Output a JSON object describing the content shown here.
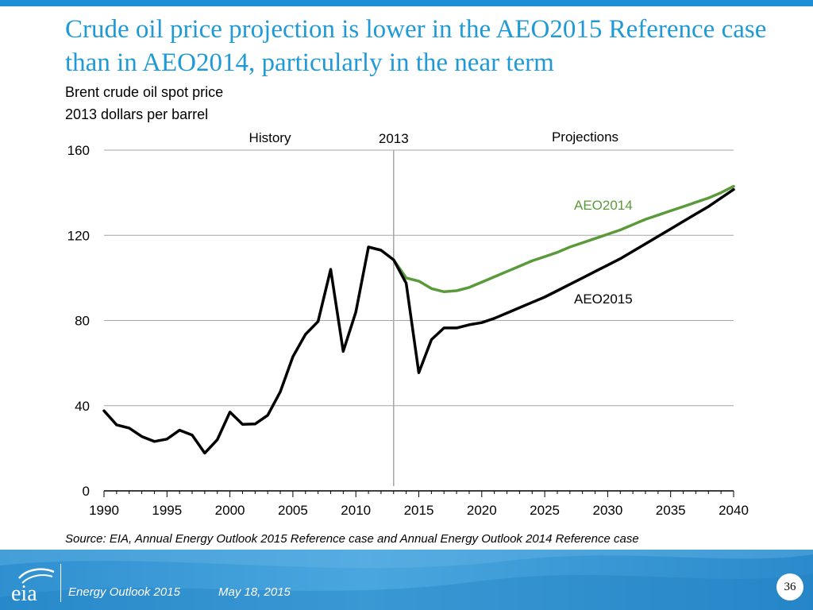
{
  "slide": {
    "title": "Crude oil price projection is lower in the AEO2015 Reference case than in AEO2014, particularly in the near term",
    "subtitle_line1": "Brent crude oil spot price",
    "subtitle_line2": "2013 dollars per barrel",
    "source": "Source:  EIA, Annual Energy Outlook 2015 Reference case and Annual Energy Outlook 2014 Reference case"
  },
  "footer": {
    "logo_text": "eia",
    "publication": "Energy  Outlook 2015",
    "date": "May 18, 2015",
    "page_number": "36"
  },
  "colors": {
    "title": "#1f9ad6",
    "aeo2014": "#5b9a3a",
    "aeo2015": "#000000",
    "grid": "#a6a6a6"
  },
  "chart_data": {
    "type": "line",
    "title": "Brent crude oil spot price",
    "ylabel": "2013 dollars per barrel",
    "xlabel": "",
    "xlim": [
      1990,
      2040
    ],
    "ylim": [
      0,
      160
    ],
    "x_ticks": [
      "1990",
      "1995",
      "2000",
      "2005",
      "2010",
      "2015",
      "2020",
      "2025",
      "2030",
      "2035",
      "2040"
    ],
    "y_ticks": [
      "0",
      "40",
      "80",
      "120",
      "160"
    ],
    "grid": true,
    "annotations": {
      "history": "History",
      "projections": "Projections",
      "divider_label": "2013",
      "divider_year": 2013
    },
    "series": [
      {
        "name": "AEO2015",
        "x": [
          1990,
          1991,
          1992,
          1993,
          1994,
          1995,
          1996,
          1997,
          1998,
          1999,
          2000,
          2001,
          2002,
          2003,
          2004,
          2005,
          2006,
          2007,
          2008,
          2009,
          2010,
          2011,
          2012,
          2013,
          2014,
          2015,
          2016,
          2017,
          2018,
          2019,
          2020,
          2021,
          2022,
          2023,
          2024,
          2025,
          2026,
          2027,
          2028,
          2029,
          2030,
          2031,
          2032,
          2033,
          2034,
          2035,
          2036,
          2037,
          2038,
          2039,
          2040
        ],
        "values": [
          37.6,
          31,
          29.5,
          25.5,
          23.2,
          24.3,
          28.5,
          26.2,
          17.7,
          24,
          37,
          31.2,
          31.4,
          35.5,
          46.5,
          63,
          73.5,
          79.5,
          104,
          65.5,
          84,
          114.5,
          113,
          108.5,
          97.5,
          55.5,
          71,
          76.5,
          76.5,
          78,
          79,
          81,
          83.5,
          86,
          88.5,
          91,
          94,
          97,
          100,
          103,
          106,
          109,
          112.5,
          116,
          119.5,
          123,
          126.5,
          130,
          133.5,
          137.5,
          141.5
        ]
      },
      {
        "name": "AEO2014",
        "x": [
          2013,
          2014,
          2015,
          2016,
          2017,
          2018,
          2019,
          2020,
          2021,
          2022,
          2023,
          2024,
          2025,
          2026,
          2027,
          2028,
          2029,
          2030,
          2031,
          2032,
          2033,
          2034,
          2035,
          2036,
          2037,
          2038,
          2039,
          2040
        ],
        "values": [
          108.5,
          100,
          98.5,
          95,
          93.5,
          94,
          95.5,
          98,
          100.5,
          103,
          105.5,
          108,
          110,
          112,
          114.5,
          116.5,
          118.5,
          120.5,
          122.5,
          125,
          127.5,
          129.5,
          131.5,
          133.5,
          135.5,
          137.5,
          140,
          143
        ]
      }
    ]
  }
}
